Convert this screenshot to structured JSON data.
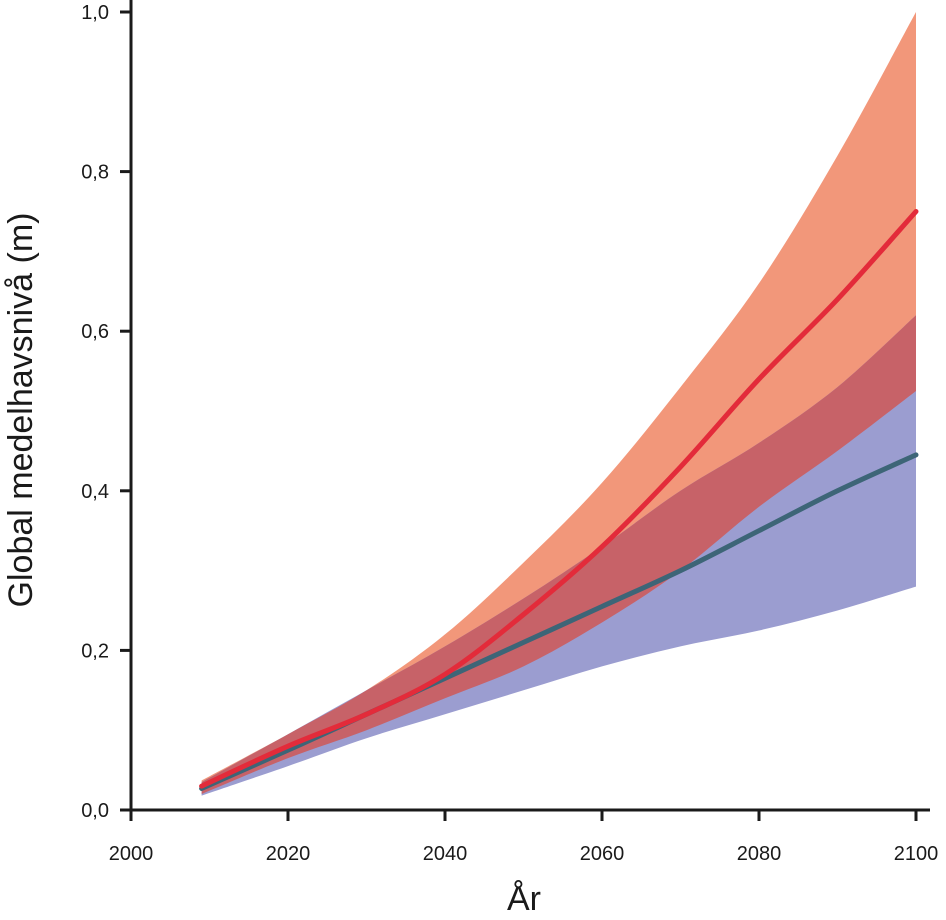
{
  "chart_data": {
    "type": "area",
    "title": "",
    "xlabel": "År",
    "ylabel": "Global medelhavsnivå (m)",
    "xlim": [
      2000,
      2100
    ],
    "ylim": [
      0.0,
      1.0
    ],
    "xticks": [
      2000,
      2020,
      2040,
      2060,
      2080,
      2100
    ],
    "xtick_labels": [
      "2000",
      "2020",
      "2040",
      "2060",
      "2080",
      "2100"
    ],
    "yticks": [
      0.0,
      0.2,
      0.4,
      0.6,
      0.8,
      1.0
    ],
    "ytick_labels": [
      "0,0",
      "0,2",
      "0,4",
      "0,6",
      "0,8",
      "1,0"
    ],
    "grid": false,
    "legend": "none",
    "x": [
      2009,
      2020,
      2030,
      2040,
      2050,
      2060,
      2070,
      2080,
      2090,
      2100
    ],
    "series": [
      {
        "color": "#e32b3a",
        "band_color": "#f2977a",
        "mean": [
          0.03,
          0.08,
          0.12,
          0.17,
          0.245,
          0.33,
          0.43,
          0.54,
          0.64,
          0.75
        ],
        "lower": [
          0.02,
          0.065,
          0.1,
          0.14,
          0.18,
          0.235,
          0.3,
          0.38,
          0.45,
          0.525
        ],
        "upper": [
          0.037,
          0.095,
          0.15,
          0.22,
          0.31,
          0.41,
          0.53,
          0.66,
          0.82,
          1.0
        ]
      },
      {
        "color": "#3d6577",
        "band_color": "#9b9dd0",
        "mean": [
          0.027,
          0.075,
          0.12,
          0.165,
          0.21,
          0.255,
          0.3,
          0.35,
          0.4,
          0.445
        ],
        "lower": [
          0.018,
          0.055,
          0.09,
          0.12,
          0.15,
          0.18,
          0.205,
          0.225,
          0.25,
          0.28
        ],
        "upper": [
          0.035,
          0.095,
          0.15,
          0.205,
          0.265,
          0.33,
          0.4,
          0.46,
          0.53,
          0.62
        ]
      }
    ],
    "overlap_color": "#c76268"
  }
}
